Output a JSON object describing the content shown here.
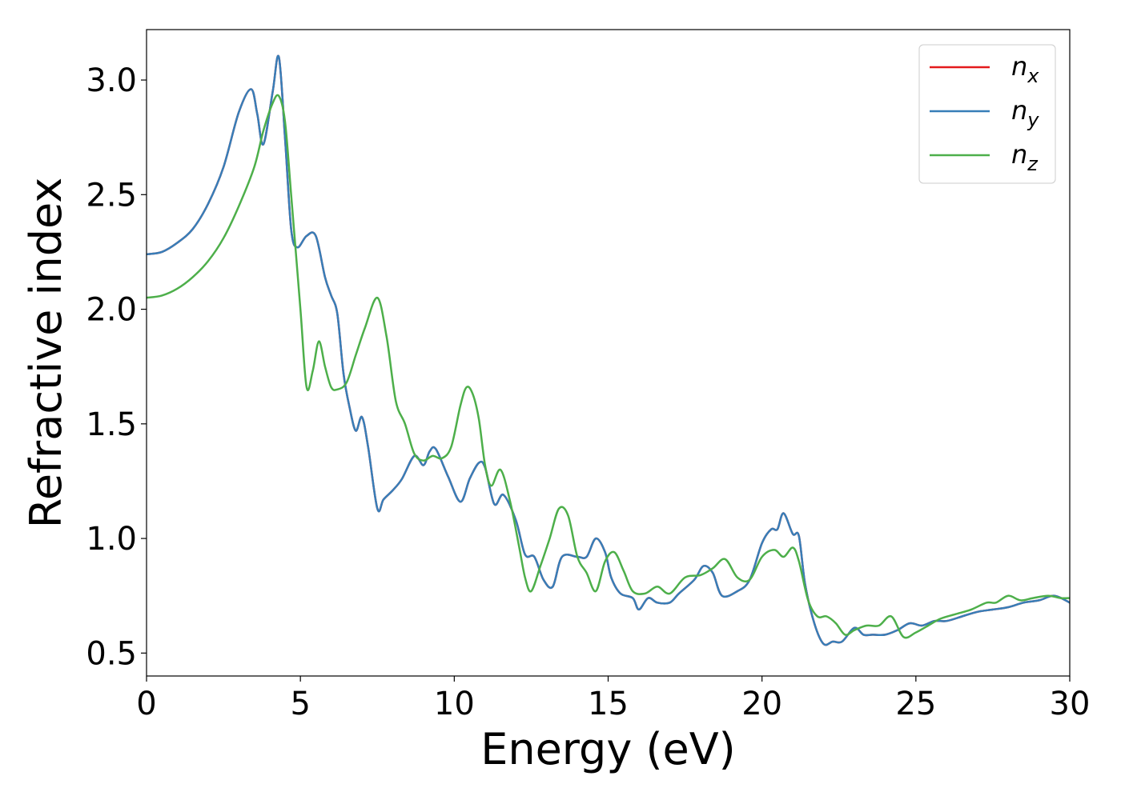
{
  "chart_data": {
    "type": "line",
    "xlabel": "Energy (eV)",
    "ylabel": "Refractive index",
    "xlim": [
      0,
      30
    ],
    "ylim": [
      0.4,
      3.22
    ],
    "xticks": [
      0,
      5,
      10,
      15,
      20,
      25,
      30
    ],
    "xtick_labels": [
      "0",
      "5",
      "10",
      "15",
      "20",
      "25",
      "30"
    ],
    "yticks": [
      0.5,
      1.0,
      1.5,
      2.0,
      2.5,
      3.0
    ],
    "ytick_labels": [
      "0.5",
      "1.0",
      "1.5",
      "2.0",
      "2.5",
      "3.0"
    ],
    "grid": false,
    "legend_position": "top-right",
    "series": [
      {
        "name": "n",
        "subscript": "x",
        "color": "#e41a1c",
        "x": [
          0,
          0.5,
          1,
          1.5,
          2,
          2.5,
          3,
          3.4,
          3.6,
          3.8,
          4.1,
          4.3,
          4.5,
          4.7,
          4.9,
          5.2,
          5.5,
          5.8,
          6.0,
          6.2,
          6.4,
          6.6,
          6.8,
          7.0,
          7.2,
          7.5,
          7.7,
          8.0,
          8.3,
          8.7,
          9.0,
          9.2,
          9.4,
          9.8,
          10.2,
          10.5,
          10.8,
          11.0,
          11.3,
          11.6,
          12.0,
          12.3,
          12.6,
          12.9,
          13.2,
          13.5,
          14.0,
          14.3,
          14.6,
          14.9,
          15.1,
          15.4,
          15.8,
          16.0,
          16.3,
          16.6,
          17.0,
          17.3,
          17.8,
          18.1,
          18.4,
          18.7,
          19.2,
          19.6,
          20.0,
          20.3,
          20.5,
          20.7,
          21.0,
          21.2,
          21.4,
          21.7,
          22.0,
          22.3,
          22.6,
          23.0,
          23.3,
          23.6,
          24.0,
          24.4,
          24.8,
          25.2,
          25.6,
          26.0,
          26.5,
          27.0,
          27.5,
          28.0,
          28.5,
          29.0,
          29.5,
          30.0
        ],
        "values": [
          2.24,
          2.25,
          2.29,
          2.35,
          2.46,
          2.62,
          2.86,
          2.96,
          2.85,
          2.72,
          2.95,
          3.1,
          2.75,
          2.35,
          2.27,
          2.32,
          2.32,
          2.14,
          2.06,
          1.98,
          1.72,
          1.57,
          1.47,
          1.53,
          1.4,
          1.13,
          1.17,
          1.21,
          1.26,
          1.36,
          1.32,
          1.38,
          1.39,
          1.27,
          1.16,
          1.26,
          1.33,
          1.31,
          1.15,
          1.19,
          1.08,
          0.93,
          0.92,
          0.82,
          0.79,
          0.92,
          0.92,
          0.92,
          1.0,
          0.94,
          0.83,
          0.76,
          0.74,
          0.69,
          0.74,
          0.72,
          0.72,
          0.76,
          0.82,
          0.88,
          0.85,
          0.75,
          0.77,
          0.82,
          0.98,
          1.04,
          1.04,
          1.11,
          1.02,
          1.01,
          0.8,
          0.63,
          0.54,
          0.55,
          0.55,
          0.61,
          0.58,
          0.58,
          0.58,
          0.6,
          0.63,
          0.62,
          0.64,
          0.64,
          0.66,
          0.68,
          0.69,
          0.7,
          0.72,
          0.73,
          0.75,
          0.72
        ]
      },
      {
        "name": "n",
        "subscript": "y",
        "color": "#377eb8",
        "x": [
          0,
          0.5,
          1,
          1.5,
          2,
          2.5,
          3,
          3.4,
          3.6,
          3.8,
          4.1,
          4.3,
          4.5,
          4.7,
          4.9,
          5.2,
          5.5,
          5.8,
          6.0,
          6.2,
          6.4,
          6.6,
          6.8,
          7.0,
          7.2,
          7.5,
          7.7,
          8.0,
          8.3,
          8.7,
          9.0,
          9.2,
          9.4,
          9.8,
          10.2,
          10.5,
          10.8,
          11.0,
          11.3,
          11.6,
          12.0,
          12.3,
          12.6,
          12.9,
          13.2,
          13.5,
          14.0,
          14.3,
          14.6,
          14.9,
          15.1,
          15.4,
          15.8,
          16.0,
          16.3,
          16.6,
          17.0,
          17.3,
          17.8,
          18.1,
          18.4,
          18.7,
          19.2,
          19.6,
          20.0,
          20.3,
          20.5,
          20.7,
          21.0,
          21.2,
          21.4,
          21.7,
          22.0,
          22.3,
          22.6,
          23.0,
          23.3,
          23.6,
          24.0,
          24.4,
          24.8,
          25.2,
          25.6,
          26.0,
          26.5,
          27.0,
          27.5,
          28.0,
          28.5,
          29.0,
          29.5,
          30.0
        ],
        "values": [
          2.24,
          2.25,
          2.29,
          2.35,
          2.46,
          2.62,
          2.86,
          2.96,
          2.85,
          2.72,
          2.95,
          3.1,
          2.75,
          2.35,
          2.27,
          2.32,
          2.32,
          2.14,
          2.06,
          1.98,
          1.72,
          1.57,
          1.47,
          1.53,
          1.4,
          1.13,
          1.17,
          1.21,
          1.26,
          1.36,
          1.32,
          1.38,
          1.39,
          1.27,
          1.16,
          1.26,
          1.33,
          1.31,
          1.15,
          1.19,
          1.08,
          0.93,
          0.92,
          0.82,
          0.79,
          0.92,
          0.92,
          0.92,
          1.0,
          0.94,
          0.83,
          0.76,
          0.74,
          0.69,
          0.74,
          0.72,
          0.72,
          0.76,
          0.82,
          0.88,
          0.85,
          0.75,
          0.77,
          0.82,
          0.98,
          1.04,
          1.04,
          1.11,
          1.02,
          1.01,
          0.8,
          0.63,
          0.54,
          0.55,
          0.55,
          0.61,
          0.58,
          0.58,
          0.58,
          0.6,
          0.63,
          0.62,
          0.64,
          0.64,
          0.66,
          0.68,
          0.69,
          0.7,
          0.72,
          0.73,
          0.75,
          0.72
        ]
      },
      {
        "name": "n",
        "subscript": "z",
        "color": "#4daf4a",
        "x": [
          0,
          0.5,
          1,
          1.5,
          2,
          2.5,
          3,
          3.5,
          3.8,
          4.1,
          4.3,
          4.5,
          4.7,
          5.0,
          5.2,
          5.4,
          5.6,
          5.8,
          6.0,
          6.2,
          6.5,
          6.8,
          7.1,
          7.5,
          7.8,
          8.1,
          8.4,
          8.7,
          9.0,
          9.3,
          9.6,
          9.9,
          10.2,
          10.4,
          10.6,
          10.8,
          11.0,
          11.2,
          11.5,
          11.8,
          12.1,
          12.3,
          12.5,
          12.8,
          13.1,
          13.4,
          13.7,
          14.0,
          14.3,
          14.6,
          14.9,
          15.2,
          15.5,
          15.8,
          16.2,
          16.6,
          17.0,
          17.5,
          18.0,
          18.4,
          18.8,
          19.2,
          19.6,
          20.0,
          20.4,
          20.7,
          21.0,
          21.2,
          21.5,
          21.8,
          22.1,
          22.4,
          22.7,
          23.0,
          23.4,
          23.8,
          24.2,
          24.6,
          25.0,
          25.4,
          25.8,
          26.3,
          26.8,
          27.3,
          27.6,
          28.0,
          28.4,
          28.8,
          29.3,
          29.7,
          30.0
        ],
        "values": [
          2.05,
          2.06,
          2.09,
          2.14,
          2.21,
          2.31,
          2.45,
          2.62,
          2.78,
          2.9,
          2.93,
          2.82,
          2.5,
          2.0,
          1.66,
          1.73,
          1.86,
          1.75,
          1.66,
          1.65,
          1.68,
          1.8,
          1.92,
          2.05,
          1.88,
          1.6,
          1.5,
          1.37,
          1.34,
          1.36,
          1.35,
          1.4,
          1.58,
          1.66,
          1.63,
          1.52,
          1.32,
          1.23,
          1.3,
          1.17,
          0.97,
          0.83,
          0.77,
          0.88,
          1.0,
          1.13,
          1.1,
          0.92,
          0.85,
          0.77,
          0.9,
          0.94,
          0.86,
          0.77,
          0.76,
          0.79,
          0.76,
          0.83,
          0.84,
          0.87,
          0.91,
          0.83,
          0.82,
          0.92,
          0.95,
          0.92,
          0.96,
          0.9,
          0.73,
          0.66,
          0.66,
          0.63,
          0.58,
          0.6,
          0.62,
          0.62,
          0.66,
          0.57,
          0.59,
          0.62,
          0.65,
          0.67,
          0.69,
          0.72,
          0.72,
          0.75,
          0.73,
          0.74,
          0.75,
          0.74,
          0.74
        ]
      }
    ]
  }
}
